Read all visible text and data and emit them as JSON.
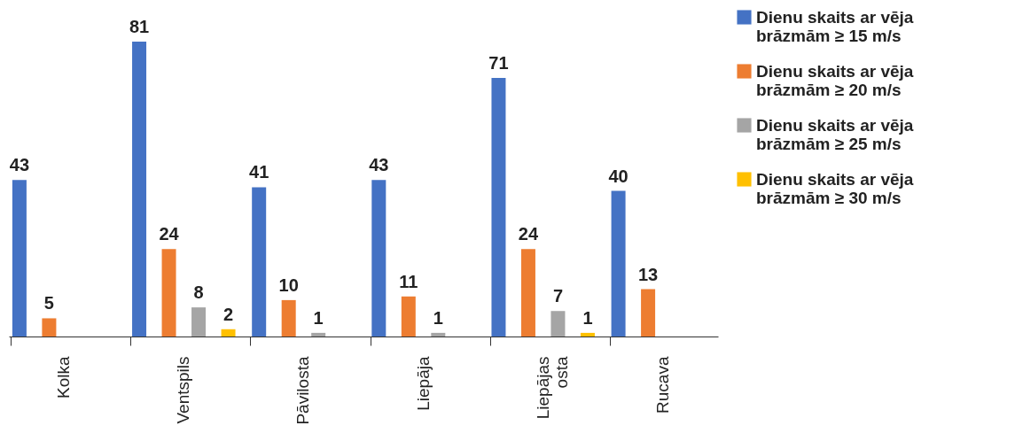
{
  "chart_data": {
    "type": "bar",
    "categories": [
      "Kolka",
      "Ventspils",
      "Pāvilosta",
      "Liepāja",
      "Liepājas osta",
      "Rucava"
    ],
    "series": [
      {
        "name": "Dienu skaits ar vēja brāzmām ≥ 15 m/s",
        "color": "#4472c4",
        "values": [
          43,
          81,
          41,
          43,
          71,
          40
        ]
      },
      {
        "name": "Dienu skaits ar vēja brāzmām ≥ 20 m/s",
        "color": "#ed7d31",
        "values": [
          5,
          24,
          10,
          11,
          24,
          13
        ]
      },
      {
        "name": "Dienu skaits ar vēja brāzmām ≥ 25 m/s",
        "color": "#a5a5a5",
        "values": [
          null,
          8,
          1,
          1,
          7,
          null
        ]
      },
      {
        "name": "Dienu skaits ar vēja brāzmām ≥ 30 m/s",
        "color": "#ffc000",
        "values": [
          null,
          2,
          null,
          null,
          1,
          null
        ]
      }
    ],
    "data_labels": true,
    "legend": "right",
    "grid": false
  }
}
